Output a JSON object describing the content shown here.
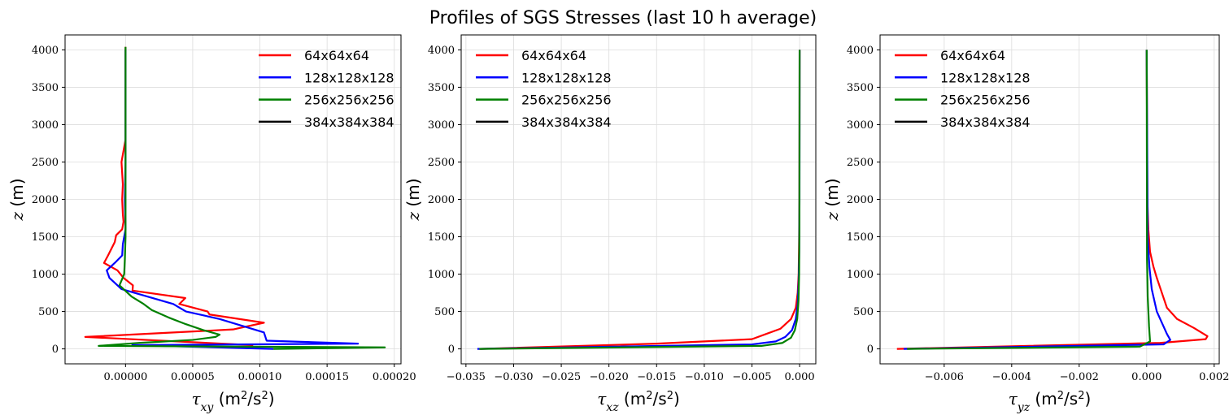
{
  "figure": {
    "title": "Profiles of SGS Stresses (last 10 h average)"
  },
  "chart_data": [
    {
      "type": "line",
      "xlabel": "τ_xy (m²/s²)",
      "xlabel_parts": {
        "tau": "τ",
        "sub": "xy",
        "unit": "(m",
        "sup": "2",
        "unit_end": "/s",
        "sup2": "2",
        "close": ")"
      },
      "ylabel": "z (m)",
      "xlim": [
        -4.5e-05,
        0.000205
      ],
      "ylim": [
        -200,
        4200
      ],
      "xticks": [
        0,
        5e-05,
        0.0001,
        0.00015,
        0.0002
      ],
      "xtick_labels": [
        "0.00000",
        "0.00005",
        "0.00010",
        "0.00015",
        "0.00020"
      ],
      "yticks": [
        0,
        500,
        1000,
        1500,
        2000,
        2500,
        3000,
        3500,
        4000
      ],
      "ytick_labels": [
        "0",
        "500",
        "1000",
        "1500",
        "2000",
        "2500",
        "3000",
        "3500",
        "4000"
      ],
      "legend": {
        "location": "upper right"
      },
      "grid": true,
      "series": [
        {
          "name": "64x64x64",
          "color": "#ff0000",
          "x": [
            9.5e-05,
            -3e-05,
            8e-05,
            0.000103,
            6.25e-05,
            6.11e-05,
            4e-05,
            4.45e-05,
            5.2e-06,
            5.5e-06,
            -1.5e-06,
            -6e-06,
            -1.6e-05,
            -1.3e-05,
            -8e-06,
            -7e-06,
            -2.5e-06,
            -1.5e-06,
            -2e-06,
            -2.5e-06,
            -2e-06,
            -3e-06,
            -1.5e-06,
            0,
            0,
            0
          ],
          "z": [
            50,
            160,
            260,
            350,
            460,
            500,
            600,
            680,
            780,
            850,
            950,
            1050,
            1150,
            1250,
            1430,
            1520,
            1600,
            1700,
            1800,
            2000,
            2200,
            2500,
            2650,
            2800,
            3000,
            4040
          ]
        },
        {
          "name": "128x128x128",
          "color": "#0000ff",
          "x": [
            0.00011,
            5e-06,
            0.000173,
            0.000105,
            0.000103,
            7e-05,
            4.5e-05,
            3.55e-05,
            -3e-06,
            -1.2e-05,
            -1.4e-05,
            -8e-06,
            -2.5e-06,
            -2e-06,
            0,
            -5e-07,
            0,
            0,
            0
          ],
          "z": [
            0,
            50,
            70,
            110,
            220,
            400,
            500,
            600,
            800,
            950,
            1050,
            1150,
            1250,
            1400,
            1600,
            2000,
            2500,
            3000,
            4000
          ]
        },
        {
          "name": "256x256x256",
          "color": "#008000",
          "x": [
            0.00011,
            0.000193,
            -2e-05,
            1e-05,
            5e-05,
            6.7e-05,
            7e-05,
            5.8e-05,
            4.5e-05,
            3.2e-05,
            1.95e-05,
            1.35e-05,
            4.5e-06,
            -4.5e-06,
            -1e-06,
            -5e-07,
            0,
            0,
            0,
            0,
            0,
            0
          ],
          "z": [
            0,
            20,
            40,
            80,
            120,
            160,
            190,
            250,
            330,
            420,
            520,
            600,
            700,
            850,
            1000,
            1200,
            1500,
            2000,
            2500,
            3000,
            3500,
            4040
          ]
        },
        {
          "name": "384x384x384",
          "color": "#000000",
          "x": [],
          "z": []
        }
      ]
    },
    {
      "type": "line",
      "xlabel": "τ_xz (m²/s²)",
      "xlabel_parts": {
        "tau": "τ",
        "sub": "xz",
        "unit": "(m",
        "sup": "2",
        "unit_end": "/s",
        "sup2": "2",
        "close": ")"
      },
      "ylabel": "z (m)",
      "xlim": [
        -0.0355,
        0.0017
      ],
      "ylim": [
        -200,
        4200
      ],
      "xticks": [
        -0.035,
        -0.03,
        -0.025,
        -0.02,
        -0.015,
        -0.01,
        -0.005,
        0.0
      ],
      "xtick_labels": [
        "−0.035",
        "−0.030",
        "−0.025",
        "−0.020",
        "−0.015",
        "−0.010",
        "−0.005",
        "0.000"
      ],
      "yticks": [
        0,
        500,
        1000,
        1500,
        2000,
        2500,
        3000,
        3500,
        4000
      ],
      "ytick_labels": [
        "0",
        "500",
        "1000",
        "1500",
        "2000",
        "2500",
        "3000",
        "3500",
        "4000"
      ],
      "legend": {
        "location": "upper left"
      },
      "grid": true,
      "series": [
        {
          "name": "64x64x64",
          "color": "#ff0000",
          "x": [
            -0.0335,
            -0.015,
            -0.005,
            -0.0035,
            -0.002,
            -0.0009,
            -0.0004,
            -0.0002,
            -0.0001,
            -5e-05,
            -2e-05,
            -1e-05,
            0
          ],
          "z": [
            0,
            70,
            130,
            200,
            270,
            400,
            550,
            750,
            1000,
            1500,
            2000,
            3000,
            4000
          ]
        },
        {
          "name": "128x128x128",
          "color": "#0000ff",
          "x": [
            -0.0338,
            -0.005,
            -0.0025,
            -0.0015,
            -0.0008,
            -0.0004,
            -0.0002,
            -0.0001,
            -4e-05,
            -1e-05,
            0
          ],
          "z": [
            0,
            60,
            100,
            160,
            250,
            400,
            600,
            900,
            1300,
            2000,
            4000
          ]
        },
        {
          "name": "256x256x256",
          "color": "#008000",
          "x": [
            -0.0336,
            -0.004,
            -0.0018,
            -0.0009,
            -0.0005,
            -0.00025,
            -0.00012,
            -5e-05,
            -2e-05,
            0
          ],
          "z": [
            0,
            40,
            80,
            150,
            250,
            400,
            650,
            1000,
            1600,
            4000
          ]
        },
        {
          "name": "384x384x384",
          "color": "#000000",
          "x": [],
          "z": []
        }
      ]
    },
    {
      "type": "line",
      "xlabel": "τ_yz (m²/s²)",
      "xlabel_parts": {
        "tau": "τ",
        "sub": "yz",
        "unit": "(m",
        "sup": "2",
        "unit_end": "/s",
        "sup2": "2",
        "close": ")"
      },
      "ylabel": "z (m)",
      "xlim": [
        -0.0079,
        0.00215
      ],
      "ylim": [
        -200,
        4200
      ],
      "xticks": [
        -0.006,
        -0.004,
        -0.002,
        0.0,
        0.002
      ],
      "xtick_labels": [
        "−0.006",
        "−0.004",
        "−0.002",
        "0.000",
        "0.002"
      ],
      "yticks": [
        0,
        500,
        1000,
        1500,
        2000,
        2500,
        3000,
        3500,
        4000
      ],
      "ytick_labels": [
        "0",
        "500",
        "1000",
        "1500",
        "2000",
        "2500",
        "3000",
        "3500",
        "4000"
      ],
      "legend": {
        "location": "upper left"
      },
      "grid": true,
      "series": [
        {
          "name": "64x64x64",
          "color": "#ff0000",
          "x": [
            -0.0074,
            0.0004,
            0.00175,
            0.0018,
            0.0014,
            0.0009,
            0.0006,
            0.00045,
            0.0003,
            0.0002,
            0.0001,
            5e-05,
            2e-05,
            0
          ],
          "z": [
            0,
            80,
            130,
            170,
            280,
            400,
            550,
            750,
            950,
            1100,
            1300,
            1600,
            2000,
            4000
          ]
        },
        {
          "name": "128x128x128",
          "color": "#0000ff",
          "x": [
            -0.0072,
            0.0005,
            0.0007,
            0.0006,
            0.0003,
            0.00015,
            8e-05,
            3e-05,
            0
          ],
          "z": [
            0,
            60,
            120,
            200,
            500,
            800,
            1100,
            1500,
            4000
          ]
        },
        {
          "name": "256x256x256",
          "color": "#008000",
          "x": [
            -0.0071,
            -0.0002,
            0.0001,
            7e-05,
            3e-05,
            1e-05,
            0
          ],
          "z": [
            0,
            30,
            100,
            300,
            700,
            1200,
            4000
          ]
        },
        {
          "name": "384x384x384",
          "color": "#000000",
          "x": [],
          "z": []
        }
      ]
    }
  ]
}
